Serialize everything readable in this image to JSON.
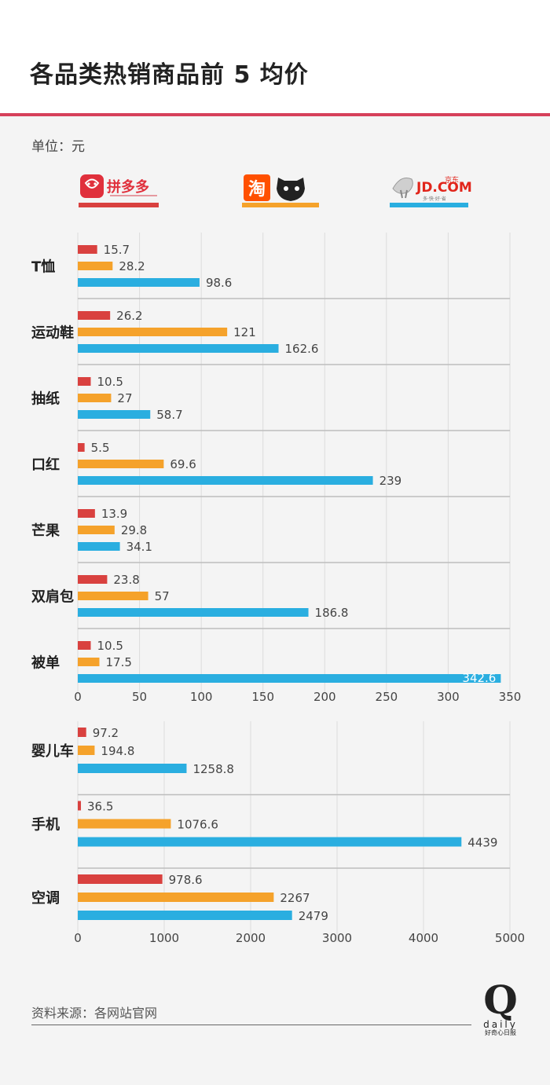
{
  "header": {
    "title": "各品类热销商品前 5 均价",
    "unit": "单位：元"
  },
  "legend": {
    "pdd": {
      "label": "拼多多",
      "color": "#d9413f"
    },
    "taobao": {
      "label": "淘",
      "color": "#f5a22b"
    },
    "jd": {
      "label": "JD.COM",
      "cn": "京东",
      "slogan": "多·快·好·省",
      "color": "#2aaee0"
    }
  },
  "footer": {
    "source": "资料来源：各网站官网",
    "logo_letter": "Q",
    "logo_word": "daily",
    "logo_cn": "好奇心日报"
  },
  "chart_data": [
    {
      "type": "bar",
      "orientation": "horizontal",
      "categories": [
        "T恤",
        "运动鞋",
        "抽纸",
        "口红",
        "芒果",
        "双肩包",
        "被单"
      ],
      "series": [
        {
          "name": "拼多多",
          "color": "#d9413f",
          "values": [
            15.7,
            26.2,
            10.5,
            5.5,
            13.9,
            23.8,
            10.5
          ],
          "labels": [
            "15.7",
            "26.2",
            "10.5",
            "5.5",
            "13.9",
            "23.8",
            "10.5"
          ]
        },
        {
          "name": "淘宝",
          "color": "#f5a22b",
          "values": [
            28.2,
            121,
            27,
            69.6,
            29.8,
            57,
            17.5
          ],
          "labels": [
            "28.2",
            "121",
            "27",
            "69.6",
            "29.8",
            "57",
            "17.5"
          ]
        },
        {
          "name": "京东",
          "color": "#2aaee0",
          "values": [
            98.6,
            162.6,
            58.7,
            239,
            34.1,
            186.8,
            342.6
          ],
          "labels": [
            "98.6",
            "162.6",
            "58.7",
            "239",
            "34.1",
            "186.8",
            "342.6"
          ]
        }
      ],
      "xlim": [
        0,
        350
      ],
      "ticks": [
        "0",
        "50",
        "100",
        "150",
        "200",
        "250",
        "300",
        "350"
      ],
      "grid": true
    },
    {
      "type": "bar",
      "orientation": "horizontal",
      "categories": [
        "婴儿车",
        "手机",
        "空调"
      ],
      "series": [
        {
          "name": "拼多多",
          "color": "#d9413f",
          "values": [
            97.2,
            36.5,
            978.6
          ],
          "labels": [
            "97.2",
            "36.5",
            "978.6"
          ]
        },
        {
          "name": "淘宝",
          "color": "#f5a22b",
          "values": [
            194.8,
            1076.6,
            2267
          ],
          "labels": [
            "194.8",
            "1076.6",
            "2267"
          ]
        },
        {
          "name": "京东",
          "color": "#2aaee0",
          "values": [
            1258.8,
            4439,
            2479
          ],
          "labels": [
            "1258.8",
            "4439",
            "2479"
          ]
        }
      ],
      "xlim": [
        0,
        5000
      ],
      "ticks": [
        "0",
        "1000",
        "2000",
        "3000",
        "4000",
        "5000"
      ],
      "grid": true
    }
  ]
}
